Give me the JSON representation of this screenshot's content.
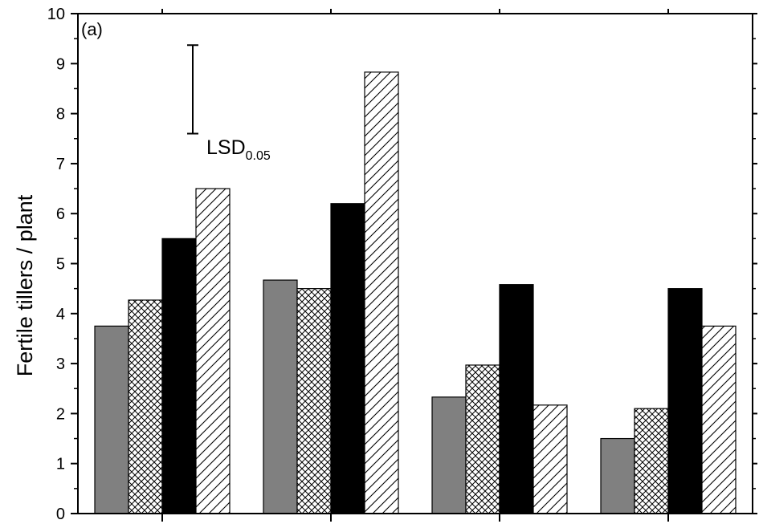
{
  "chart_data": {
    "type": "bar",
    "panel_label": "(a)",
    "ylabel": "Fertile tillers / plant",
    "xlabel": "",
    "ylim": [
      0,
      10
    ],
    "yticks": [
      0,
      1,
      2,
      3,
      4,
      5,
      6,
      7,
      8,
      9,
      10
    ],
    "categories": [
      "",
      "",
      "",
      ""
    ],
    "series": [
      {
        "values": [
          3.75,
          4.67,
          2.33,
          1.5
        ],
        "color": "#808080",
        "pattern": "solid-gray"
      },
      {
        "values": [
          4.27,
          4.5,
          2.97,
          2.1
        ],
        "color": "#ffffff",
        "pattern": "crosshatch"
      },
      {
        "values": [
          5.5,
          6.2,
          4.58,
          4.5
        ],
        "color": "#000000",
        "pattern": "solid-black"
      },
      {
        "values": [
          6.5,
          8.83,
          2.17,
          3.75
        ],
        "color": "#ffffff",
        "pattern": "diagonal-hatch"
      }
    ],
    "error_bar": {
      "label_main": "LSD",
      "label_sub": "0.05",
      "low": 7.6,
      "high": 9.37
    },
    "grid": false,
    "legend": "none"
  }
}
